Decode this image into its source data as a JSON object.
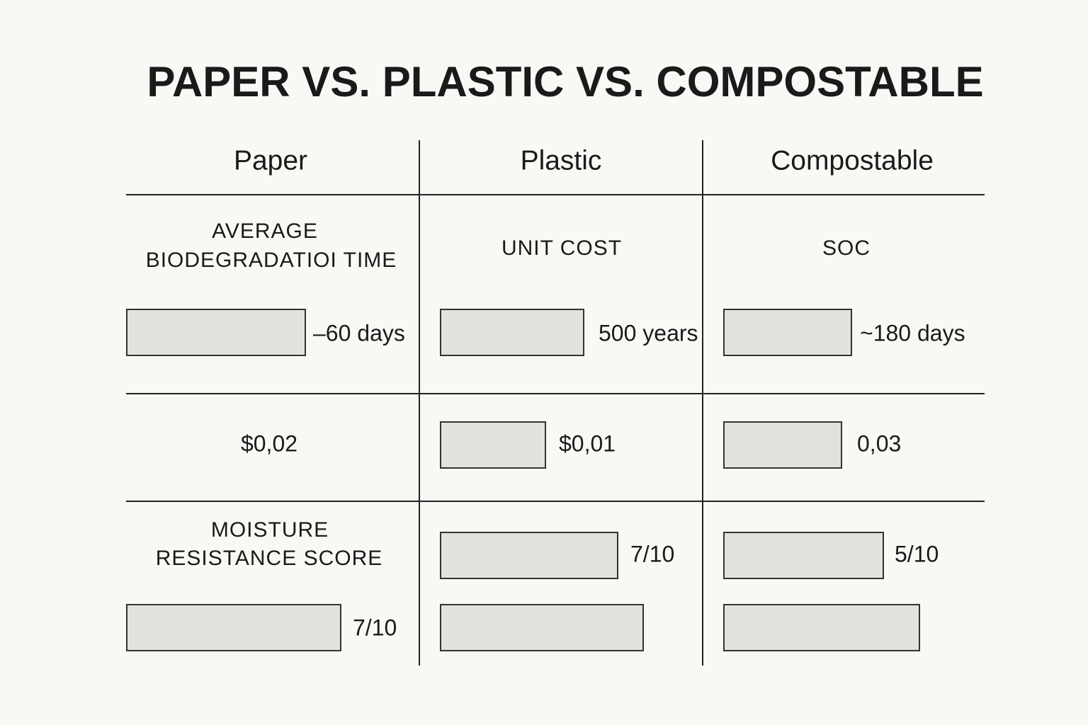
{
  "title": "PAPER VS. PLASTIC VS. COMPOSTABLE",
  "columns": [
    "Paper",
    "Plastic",
    "Compostable"
  ],
  "rows": [
    {
      "cells": [
        {
          "label": [
            "AVERAGE",
            "BIODEGRADATIOI TIME"
          ],
          "value": "–60 days"
        },
        {
          "label": [
            "UNIT COST"
          ],
          "value": "500 years"
        },
        {
          "label": [
            "SOC"
          ],
          "value": "~180 days"
        }
      ]
    },
    {
      "cells": [
        {
          "value": "$0,02"
        },
        {
          "value": "$0,01"
        },
        {
          "value": "0,03"
        }
      ]
    },
    {
      "cells": [
        {
          "label": [
            "MOISTURE",
            "RESISTANCE SCORE"
          ],
          "value": "7/10"
        },
        {
          "value": "7/10"
        },
        {
          "value": "5/10"
        }
      ]
    }
  ]
}
